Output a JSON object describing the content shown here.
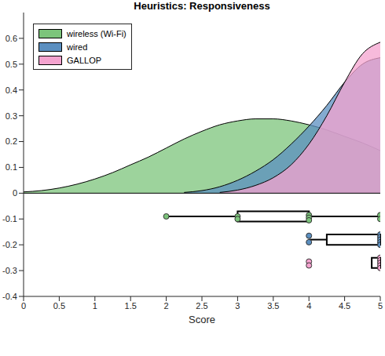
{
  "chart_data": {
    "type": "raincloud",
    "title": "Heuristics: Responsiveness",
    "x_label": "Score",
    "xlim": [
      0,
      5
    ],
    "xticks": [
      0,
      0.5,
      1,
      1.5,
      2,
      2.5,
      3,
      3.5,
      4,
      4.5,
      5
    ],
    "ylim": [
      -0.4,
      0.7
    ],
    "yticks": [
      -0.4,
      -0.3,
      -0.2,
      -0.1,
      0,
      0.1,
      0.2,
      0.3,
      0.4,
      0.5,
      0.6
    ],
    "legend": "upper left",
    "x": [
      0,
      0.25,
      0.5,
      0.75,
      1,
      1.25,
      1.5,
      1.75,
      2,
      2.25,
      2.5,
      2.75,
      3,
      3.25,
      3.5,
      3.75,
      4,
      4.25,
      4.5,
      4.75,
      5
    ],
    "series": [
      {
        "name": "wireless (Wi-Fi)",
        "color": "#7cc47b",
        "values": [
          0.005,
          0.01,
          0.02,
          0.035,
          0.055,
          0.08,
          0.11,
          0.14,
          0.175,
          0.21,
          0.24,
          0.265,
          0.28,
          0.288,
          0.288,
          0.28,
          0.265,
          0.245,
          0.22,
          0.195,
          0.165
        ],
        "box_y": -0.09,
        "box": {
          "min": 2,
          "q1": 3,
          "median": 4,
          "q3": 4,
          "max": 5
        },
        "points": {
          "x": [
            2,
            3,
            3,
            4,
            4,
            4,
            5,
            5
          ],
          "y": [
            -0.09,
            -0.09,
            -0.1,
            -0.085,
            -0.095,
            -0.105,
            -0.085,
            -0.1
          ]
        }
      },
      {
        "name": "wired",
        "color": "#5b8fc0",
        "values": [
          null,
          null,
          null,
          null,
          null,
          null,
          null,
          null,
          null,
          0.003,
          0.01,
          0.025,
          0.05,
          0.085,
          0.13,
          0.19,
          0.26,
          0.34,
          0.43,
          0.5,
          0.525
        ],
        "box_y": -0.18,
        "box": {
          "min": 4,
          "q1": 4.25,
          "median": 5,
          "q3": 5,
          "max": 5
        },
        "points": {
          "x": [
            4,
            4,
            5,
            5,
            5,
            5,
            5
          ],
          "y": [
            -0.165,
            -0.19,
            -0.16,
            -0.17,
            -0.18,
            -0.19,
            -0.2
          ]
        }
      },
      {
        "name": "GALLOP",
        "color": "#f4a3cf",
        "values": [
          null,
          null,
          null,
          null,
          null,
          null,
          null,
          null,
          null,
          null,
          null,
          0.003,
          0.012,
          0.03,
          0.06,
          0.11,
          0.19,
          0.3,
          0.43,
          0.54,
          0.585
        ],
        "box_y": -0.27,
        "box": {
          "min": 4.88,
          "q1": 4.88,
          "median": 5,
          "q3": 5,
          "max": 5
        },
        "points": {
          "x": [
            4,
            4,
            5,
            5,
            5,
            5,
            5
          ],
          "y": [
            -0.265,
            -0.28,
            -0.25,
            -0.26,
            -0.27,
            -0.28,
            -0.29
          ]
        }
      }
    ]
  }
}
